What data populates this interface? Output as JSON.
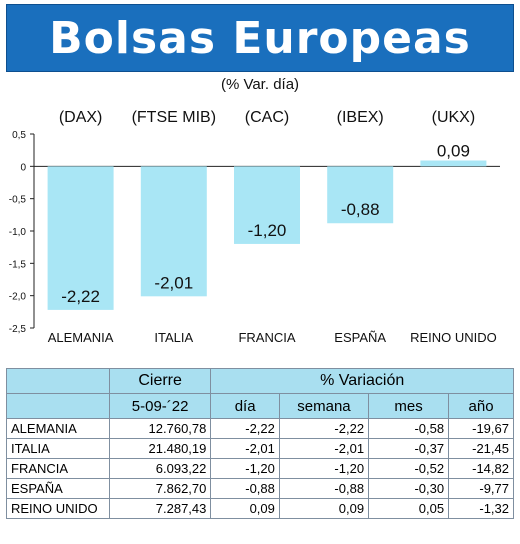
{
  "header": {
    "title": "Bolsas Europeas",
    "subtitle": "(% Var. día)"
  },
  "colors": {
    "banner": "#1a6fbd",
    "bar": "#a9e6f5",
    "table_header": "#a9dff0"
  },
  "chart_data": {
    "type": "bar",
    "indices": [
      "(DAX)",
      "(FTSE MIB)",
      "(CAC)",
      "(IBEX)",
      "(UKX)"
    ],
    "categories": [
      "ALEMANIA",
      "ITALIA",
      "FRANCIA",
      "ESPAÑA",
      "REINO UNIDO"
    ],
    "values": [
      -2.22,
      -2.01,
      -1.2,
      -0.88,
      0.09
    ],
    "value_labels": [
      "-2,22",
      "-2,01",
      "-1,20",
      "-0,88",
      "0,09"
    ],
    "ylim": [
      -2.5,
      0.5
    ],
    "yticks": [
      0.5,
      0,
      -0.5,
      -1.0,
      -1.5,
      -2.0,
      -2.5
    ],
    "ytick_labels": [
      "0,5",
      "0",
      "-0,5",
      "-1,0",
      "-1,5",
      "-2,0",
      "-2,5"
    ],
    "grid": false
  },
  "table": {
    "group_headers": [
      "Cierre",
      "% Variación"
    ],
    "date": "5-09-´22",
    "columns": [
      "día",
      "semana",
      "mes",
      "año"
    ],
    "rows": [
      {
        "country": "ALEMANIA",
        "cierre": "12.760,78",
        "dia": "-2,22",
        "semana": "-2,22",
        "mes": "-0,58",
        "ano": "-19,67"
      },
      {
        "country": "ITALIA",
        "cierre": "21.480,19",
        "dia": "-2,01",
        "semana": "-2,01",
        "mes": "-0,37",
        "ano": "-21,45"
      },
      {
        "country": "FRANCIA",
        "cierre": "6.093,22",
        "dia": "-1,20",
        "semana": "-1,20",
        "mes": "-0,52",
        "ano": "-14,82"
      },
      {
        "country": "ESPAÑA",
        "cierre": "7.862,70",
        "dia": "-0,88",
        "semana": "-0,88",
        "mes": "-0,30",
        "ano": "-9,77"
      },
      {
        "country": "REINO UNIDO",
        "cierre": "7.287,43",
        "dia": "0,09",
        "semana": "0,09",
        "mes": "0,05",
        "ano": "-1,32"
      }
    ]
  }
}
